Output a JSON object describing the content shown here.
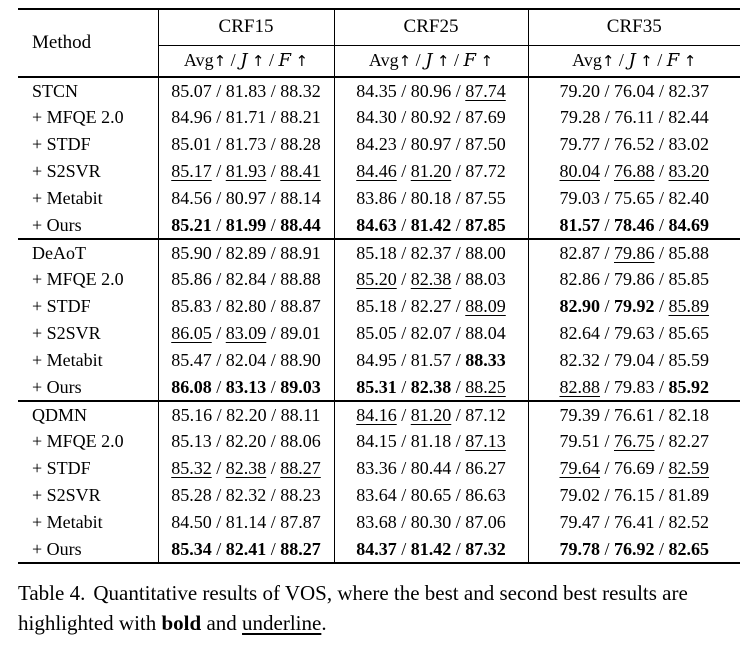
{
  "table": {
    "method_header": "Method",
    "col_groups": [
      {
        "label": "CRF15"
      },
      {
        "label": "CRF25"
      },
      {
        "label": "CRF35"
      }
    ],
    "metric_header": {
      "parts": [
        {
          "text": "Avg",
          "script": false
        },
        {
          "text": "J",
          "script": true
        },
        {
          "text": "F",
          "script": true
        }
      ],
      "arrow": "↑",
      "sep": " / "
    },
    "value_separator": " / ",
    "groups": [
      {
        "rows": [
          {
            "method": "STCN",
            "cells": [
              {
                "values": [
                  "85.07",
                  "81.83",
                  "88.32"
                ],
                "styles": [
                  "",
                  "",
                  ""
                ]
              },
              {
                "values": [
                  "84.35",
                  "80.96",
                  "87.74"
                ],
                "styles": [
                  "",
                  "",
                  "u"
                ]
              },
              {
                "values": [
                  "79.20",
                  "76.04",
                  "82.37"
                ],
                "styles": [
                  "",
                  "",
                  ""
                ]
              }
            ]
          },
          {
            "method": "+ MFQE 2.0",
            "cells": [
              {
                "values": [
                  "84.96",
                  "81.71",
                  "88.21"
                ],
                "styles": [
                  "",
                  "",
                  ""
                ]
              },
              {
                "values": [
                  "84.30",
                  "80.92",
                  "87.69"
                ],
                "styles": [
                  "",
                  "",
                  ""
                ]
              },
              {
                "values": [
                  "79.28",
                  "76.11",
                  "82.44"
                ],
                "styles": [
                  "",
                  "",
                  ""
                ]
              }
            ]
          },
          {
            "method": "+ STDF",
            "cells": [
              {
                "values": [
                  "85.01",
                  "81.73",
                  "88.28"
                ],
                "styles": [
                  "",
                  "",
                  ""
                ]
              },
              {
                "values": [
                  "84.23",
                  "80.97",
                  "87.50"
                ],
                "styles": [
                  "",
                  "",
                  ""
                ]
              },
              {
                "values": [
                  "79.77",
                  "76.52",
                  "83.02"
                ],
                "styles": [
                  "",
                  "",
                  ""
                ]
              }
            ]
          },
          {
            "method": "+ S2SVR",
            "cells": [
              {
                "values": [
                  "85.17",
                  "81.93",
                  "88.41"
                ],
                "styles": [
                  "u",
                  "u",
                  "u"
                ]
              },
              {
                "values": [
                  "84.46",
                  "81.20",
                  "87.72"
                ],
                "styles": [
                  "u",
                  "u",
                  ""
                ]
              },
              {
                "values": [
                  "80.04",
                  "76.88",
                  "83.20"
                ],
                "styles": [
                  "u",
                  "u",
                  "u"
                ]
              }
            ]
          },
          {
            "method": "+ Metabit",
            "cells": [
              {
                "values": [
                  "84.56",
                  "80.97",
                  "88.14"
                ],
                "styles": [
                  "",
                  "",
                  ""
                ]
              },
              {
                "values": [
                  "83.86",
                  "80.18",
                  "87.55"
                ],
                "styles": [
                  "",
                  "",
                  ""
                ]
              },
              {
                "values": [
                  "79.03",
                  "75.65",
                  "82.40"
                ],
                "styles": [
                  "",
                  "",
                  ""
                ]
              }
            ]
          },
          {
            "method": "+ Ours",
            "cells": [
              {
                "values": [
                  "85.21",
                  "81.99",
                  "88.44"
                ],
                "styles": [
                  "b",
                  "b",
                  "b"
                ]
              },
              {
                "values": [
                  "84.63",
                  "81.42",
                  "87.85"
                ],
                "styles": [
                  "b",
                  "b",
                  "b"
                ]
              },
              {
                "values": [
                  "81.57",
                  "78.46",
                  "84.69"
                ],
                "styles": [
                  "b",
                  "b",
                  "b"
                ]
              }
            ]
          }
        ]
      },
      {
        "rows": [
          {
            "method": "DeAoT",
            "cells": [
              {
                "values": [
                  "85.90",
                  "82.89",
                  "88.91"
                ],
                "styles": [
                  "",
                  "",
                  ""
                ]
              },
              {
                "values": [
                  "85.18",
                  "82.37",
                  "88.00"
                ],
                "styles": [
                  "",
                  "",
                  ""
                ]
              },
              {
                "values": [
                  "82.87",
                  "79.86",
                  "85.88"
                ],
                "styles": [
                  "",
                  "u",
                  ""
                ]
              }
            ]
          },
          {
            "method": "+ MFQE 2.0",
            "cells": [
              {
                "values": [
                  "85.86",
                  "82.84",
                  "88.88"
                ],
                "styles": [
                  "",
                  "",
                  ""
                ]
              },
              {
                "values": [
                  "85.20",
                  "82.38",
                  "88.03"
                ],
                "styles": [
                  "u",
                  "u",
                  ""
                ]
              },
              {
                "values": [
                  "82.86",
                  "79.86",
                  "85.85"
                ],
                "styles": [
                  "",
                  "",
                  ""
                ]
              }
            ]
          },
          {
            "method": "+ STDF",
            "cells": [
              {
                "values": [
                  "85.83",
                  "82.80",
                  "88.87"
                ],
                "styles": [
                  "",
                  "",
                  ""
                ]
              },
              {
                "values": [
                  "85.18",
                  "82.27",
                  "88.09"
                ],
                "styles": [
                  "",
                  "",
                  "u"
                ]
              },
              {
                "values": [
                  "82.90",
                  "79.92",
                  "85.89"
                ],
                "styles": [
                  "b",
                  "b",
                  "u"
                ]
              }
            ]
          },
          {
            "method": "+ S2SVR",
            "cells": [
              {
                "values": [
                  "86.05",
                  "83.09",
                  "89.01"
                ],
                "styles": [
                  "u",
                  "u",
                  ""
                ]
              },
              {
                "values": [
                  "85.05",
                  "82.07",
                  "88.04"
                ],
                "styles": [
                  "",
                  "",
                  ""
                ]
              },
              {
                "values": [
                  "82.64",
                  "79.63",
                  "85.65"
                ],
                "styles": [
                  "",
                  "",
                  ""
                ]
              }
            ]
          },
          {
            "method": "+ Metabit",
            "cells": [
              {
                "values": [
                  "85.47",
                  "82.04",
                  "88.90"
                ],
                "styles": [
                  "",
                  "",
                  ""
                ]
              },
              {
                "values": [
                  "84.95",
                  "81.57",
                  "88.33"
                ],
                "styles": [
                  "",
                  "",
                  "b"
                ]
              },
              {
                "values": [
                  "82.32",
                  "79.04",
                  "85.59"
                ],
                "styles": [
                  "",
                  "",
                  ""
                ]
              }
            ]
          },
          {
            "method": "+ Ours",
            "cells": [
              {
                "values": [
                  "86.08",
                  "83.13",
                  "89.03"
                ],
                "styles": [
                  "b",
                  "b",
                  "b"
                ]
              },
              {
                "values": [
                  "85.31",
                  "82.38",
                  "88.25"
                ],
                "styles": [
                  "b",
                  "b",
                  "u"
                ]
              },
              {
                "values": [
                  "82.88",
                  "79.83",
                  "85.92"
                ],
                "styles": [
                  "u",
                  "",
                  "b"
                ]
              }
            ]
          }
        ]
      },
      {
        "rows": [
          {
            "method": "QDMN",
            "cells": [
              {
                "values": [
                  "85.16",
                  "82.20",
                  "88.11"
                ],
                "styles": [
                  "",
                  "",
                  ""
                ]
              },
              {
                "values": [
                  "84.16",
                  "81.20",
                  "87.12"
                ],
                "styles": [
                  "u",
                  "u",
                  ""
                ]
              },
              {
                "values": [
                  "79.39",
                  "76.61",
                  "82.18"
                ],
                "styles": [
                  "",
                  "",
                  ""
                ]
              }
            ]
          },
          {
            "method": "+ MFQE 2.0",
            "cells": [
              {
                "values": [
                  "85.13",
                  "82.20",
                  "88.06"
                ],
                "styles": [
                  "",
                  "",
                  ""
                ]
              },
              {
                "values": [
                  "84.15",
                  "81.18",
                  "87.13"
                ],
                "styles": [
                  "",
                  "",
                  "u"
                ]
              },
              {
                "values": [
                  "79.51",
                  "76.75",
                  "82.27"
                ],
                "styles": [
                  "",
                  "u",
                  ""
                ]
              }
            ]
          },
          {
            "method": "+ STDF",
            "cells": [
              {
                "values": [
                  "85.32",
                  "82.38",
                  "88.27"
                ],
                "styles": [
                  "u",
                  "u",
                  "u"
                ]
              },
              {
                "values": [
                  "83.36",
                  "80.44",
                  "86.27"
                ],
                "styles": [
                  "",
                  "",
                  ""
                ]
              },
              {
                "values": [
                  "79.64",
                  "76.69",
                  "82.59"
                ],
                "styles": [
                  "u",
                  "",
                  "u"
                ]
              }
            ]
          },
          {
            "method": "+ S2SVR",
            "cells": [
              {
                "values": [
                  "85.28",
                  "82.32",
                  "88.23"
                ],
                "styles": [
                  "",
                  "",
                  ""
                ]
              },
              {
                "values": [
                  "83.64",
                  "80.65",
                  "86.63"
                ],
                "styles": [
                  "",
                  "",
                  ""
                ]
              },
              {
                "values": [
                  "79.02",
                  "76.15",
                  "81.89"
                ],
                "styles": [
                  "",
                  "",
                  ""
                ]
              }
            ]
          },
          {
            "method": "+ Metabit",
            "cells": [
              {
                "values": [
                  "84.50",
                  "81.14",
                  "87.87"
                ],
                "styles": [
                  "",
                  "",
                  ""
                ]
              },
              {
                "values": [
                  "83.68",
                  "80.30",
                  "87.06"
                ],
                "styles": [
                  "",
                  "",
                  ""
                ]
              },
              {
                "values": [
                  "79.47",
                  "76.41",
                  "82.52"
                ],
                "styles": [
                  "",
                  "",
                  ""
                ]
              }
            ]
          },
          {
            "method": "+ Ours",
            "cells": [
              {
                "values": [
                  "85.34",
                  "82.41",
                  "88.27"
                ],
                "styles": [
                  "b",
                  "b",
                  "b"
                ]
              },
              {
                "values": [
                  "84.37",
                  "81.42",
                  "87.32"
                ],
                "styles": [
                  "b",
                  "b",
                  "b"
                ]
              },
              {
                "values": [
                  "79.78",
                  "76.92",
                  "82.65"
                ],
                "styles": [
                  "b",
                  "b",
                  "b"
                ]
              }
            ]
          }
        ]
      }
    ]
  },
  "caption": {
    "label": "Table 4.",
    "line1_rest": "Quantitative results of VOS, where the best and second",
    "line2_before": "best results are highlighted with",
    "bold_word": "bold",
    "between": "and",
    "underline_word": "underline",
    "period": "."
  }
}
